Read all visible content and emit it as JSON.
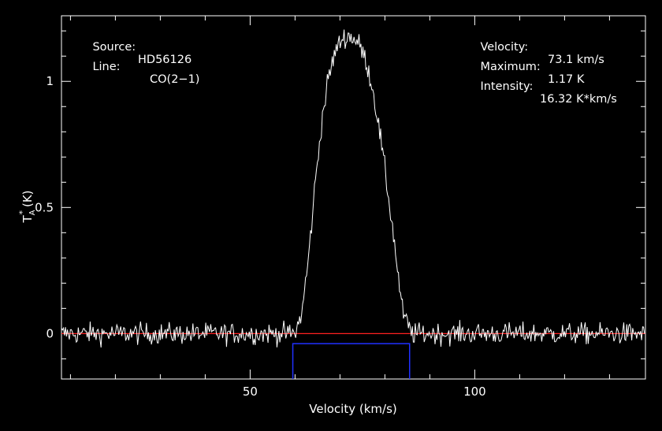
{
  "chart_data": {
    "type": "line",
    "title": "",
    "xlabel": "Velocity (km/s)",
    "ylabel": "T",
    "ylabel_sup": "*",
    "ylabel_sub": "A",
    "ylabel_unit": "(K)",
    "xlim": [
      8,
      138
    ],
    "ylim": [
      -0.18,
      1.26
    ],
    "x_ticks": [
      50,
      100
    ],
    "y_ticks": [
      0,
      0.5,
      1
    ],
    "y_tick_labels": [
      "0",
      "0.5",
      "1"
    ],
    "grid": false,
    "legend": "none",
    "series": [
      {
        "color": "#ffffff",
        "x": [
          8,
          15,
          25,
          35,
          45,
          55,
          58,
          60,
          61.5,
          63,
          64.5,
          66,
          67.5,
          69,
          70.5,
          72,
          73.1,
          74.5,
          76,
          77.5,
          79,
          80.5,
          82,
          83,
          84,
          86,
          95,
          105,
          115,
          125,
          138
        ],
        "y": [
          0,
          0,
          0,
          0,
          0,
          0,
          0,
          0,
          0.08,
          0.3,
          0.6,
          0.85,
          1.02,
          1.12,
          1.17,
          1.18,
          1.17,
          1.14,
          1.07,
          0.95,
          0.78,
          0.58,
          0.38,
          0.22,
          0.08,
          0,
          0,
          0,
          0,
          0,
          0
        ],
        "noise_rms": 0.03
      }
    ],
    "baseline": {
      "color": "#ff2020",
      "y": 0
    },
    "integration_window": {
      "color": "#2030ff",
      "x": [
        59.5,
        85.5
      ],
      "y": -0.04
    }
  },
  "info_left": [
    {
      "label": "Source:",
      "value": "HD56126"
    },
    {
      "label": "Line:",
      "value": "CO(2−1)"
    }
  ],
  "info_right": [
    {
      "label": "Velocity:",
      "value": "73.1 km/s"
    },
    {
      "label": "Maximum:",
      "value": "1.17 K"
    },
    {
      "label": "Intensity:",
      "value": "16.32 K*km/s"
    }
  ],
  "colors": {
    "background": "#000000",
    "frame": "#ffffff"
  }
}
